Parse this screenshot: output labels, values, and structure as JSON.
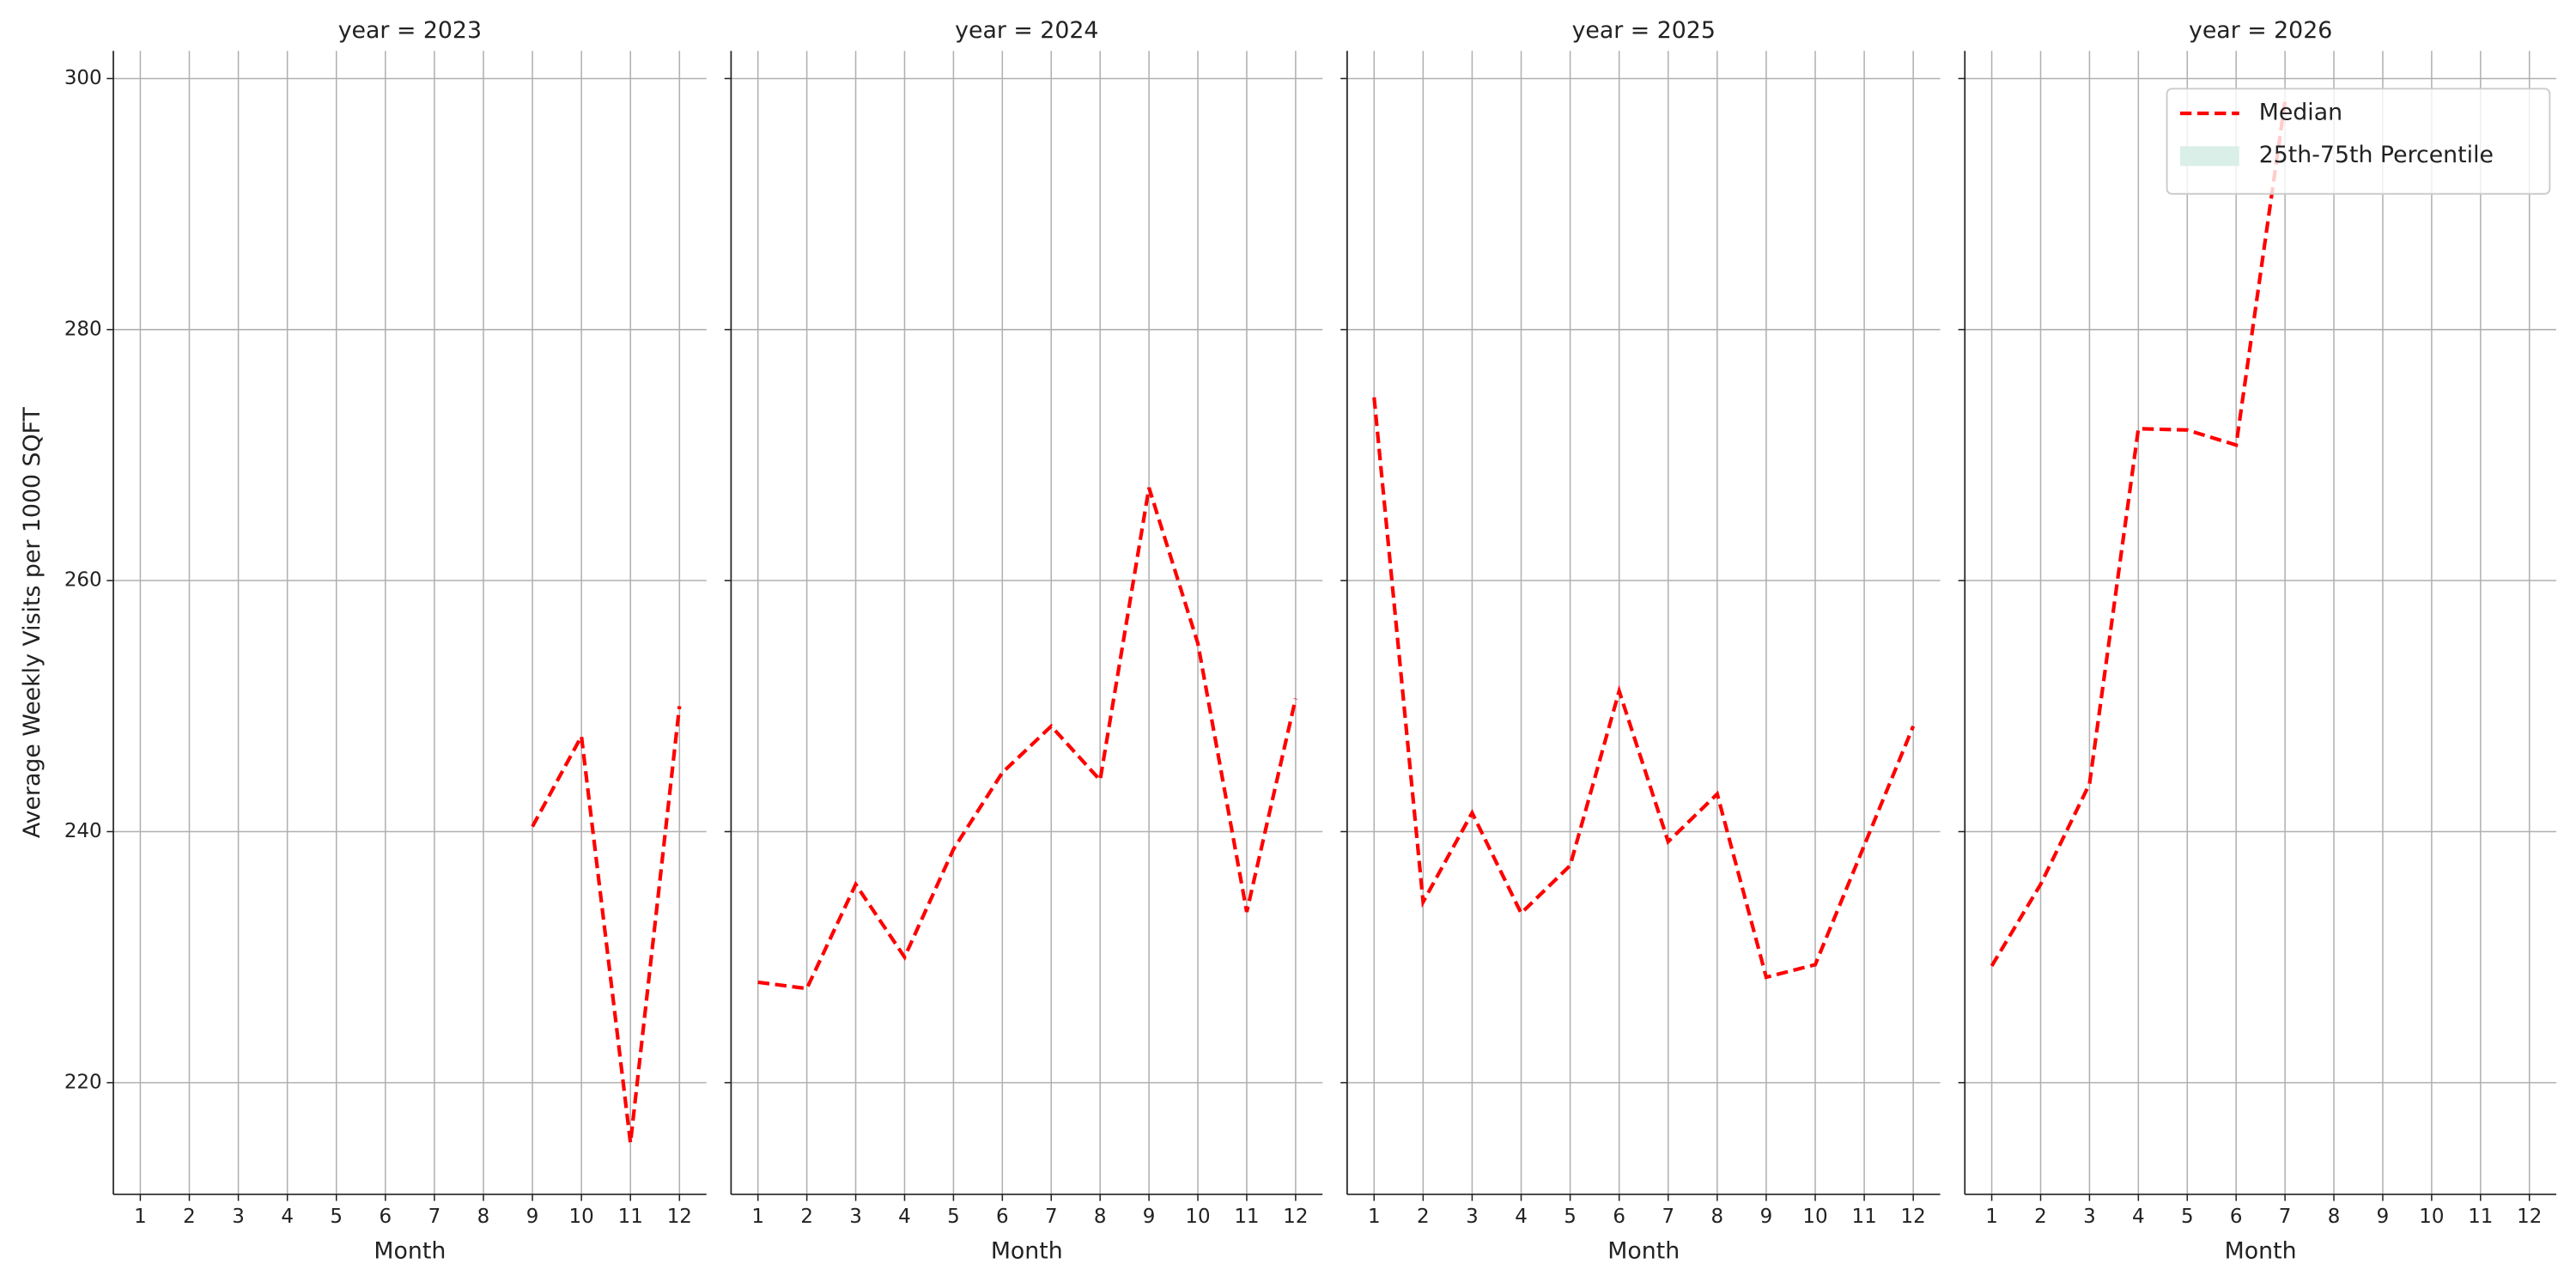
{
  "chart_data": [
    {
      "type": "line",
      "title": "year = 2023",
      "x_label": "Month",
      "y_label": "Average Weekly Visits per 1000 SQFT",
      "x": [
        1,
        2,
        3,
        4,
        5,
        6,
        7,
        8,
        9,
        10,
        11,
        12
      ],
      "series": [
        {
          "color": "#ff0000",
          "values": [
            null,
            null,
            null,
            null,
            null,
            null,
            null,
            null,
            240.4,
            247.6,
            215.2,
            250.0
          ]
        }
      ],
      "xlim": [
        0.45,
        12.55
      ],
      "xticks": [
        1,
        2,
        3,
        4,
        5,
        6,
        7,
        8,
        9,
        10,
        11,
        12
      ],
      "ylim": [
        211.1,
        302.2
      ],
      "yticks": [
        220,
        240,
        260,
        280,
        300
      ],
      "grid": true
    },
    {
      "type": "line",
      "title": "year = 2024",
      "x_label": "Month",
      "x": [
        1,
        2,
        3,
        4,
        5,
        6,
        7,
        8,
        9,
        10,
        11,
        12
      ],
      "series": [
        {
          "color": "#ff0000",
          "values": [
            228.0,
            227.5,
            235.8,
            230.0,
            238.6,
            244.7,
            248.4,
            244.1,
            267.4,
            255.0,
            233.6,
            250.6
          ]
        }
      ],
      "xlim": [
        0.45,
        12.55
      ],
      "xticks": [
        1,
        2,
        3,
        4,
        5,
        6,
        7,
        8,
        9,
        10,
        11,
        12
      ],
      "ylim": [
        211.1,
        302.2
      ],
      "yticks": [
        220,
        240,
        260,
        280,
        300
      ],
      "grid": true
    },
    {
      "type": "line",
      "title": "year = 2025",
      "x_label": "Month",
      "x": [
        1,
        2,
        3,
        4,
        5,
        6,
        7,
        8,
        9,
        10,
        11,
        12
      ],
      "series": [
        {
          "color": "#ff0000",
          "values": [
            274.6,
            234.4,
            241.5,
            233.5,
            237.3,
            251.2,
            239.2,
            243.0,
            228.4,
            229.4,
            238.9,
            248.4
          ]
        }
      ],
      "xlim": [
        0.45,
        12.55
      ],
      "xticks": [
        1,
        2,
        3,
        4,
        5,
        6,
        7,
        8,
        9,
        10,
        11,
        12
      ],
      "ylim": [
        211.1,
        302.2
      ],
      "yticks": [
        220,
        240,
        260,
        280,
        300
      ],
      "grid": true
    },
    {
      "type": "line",
      "title": "year = 2026",
      "x_label": "Month",
      "x": [
        1,
        2,
        3,
        4,
        5,
        6,
        7,
        8,
        9,
        10,
        11,
        12
      ],
      "series": [
        {
          "color": "#ff0000",
          "values": [
            229.3,
            235.8,
            243.8,
            272.1,
            272.0,
            270.8,
            298.2,
            null,
            null,
            null,
            null,
            null
          ]
        }
      ],
      "xlim": [
        0.45,
        12.55
      ],
      "xticks": [
        1,
        2,
        3,
        4,
        5,
        6,
        7,
        8,
        9,
        10,
        11,
        12
      ],
      "ylim": [
        211.1,
        302.2
      ],
      "yticks": [
        220,
        240,
        260,
        280,
        300
      ],
      "grid": true,
      "legend": {
        "loc": "upper right",
        "entries": [
          {
            "label": "Median",
            "color": "#ff0000",
            "style": "dashed"
          },
          {
            "label": "25th-75th Percentile",
            "color": "#d9efe7",
            "style": "patch"
          }
        ]
      }
    }
  ]
}
